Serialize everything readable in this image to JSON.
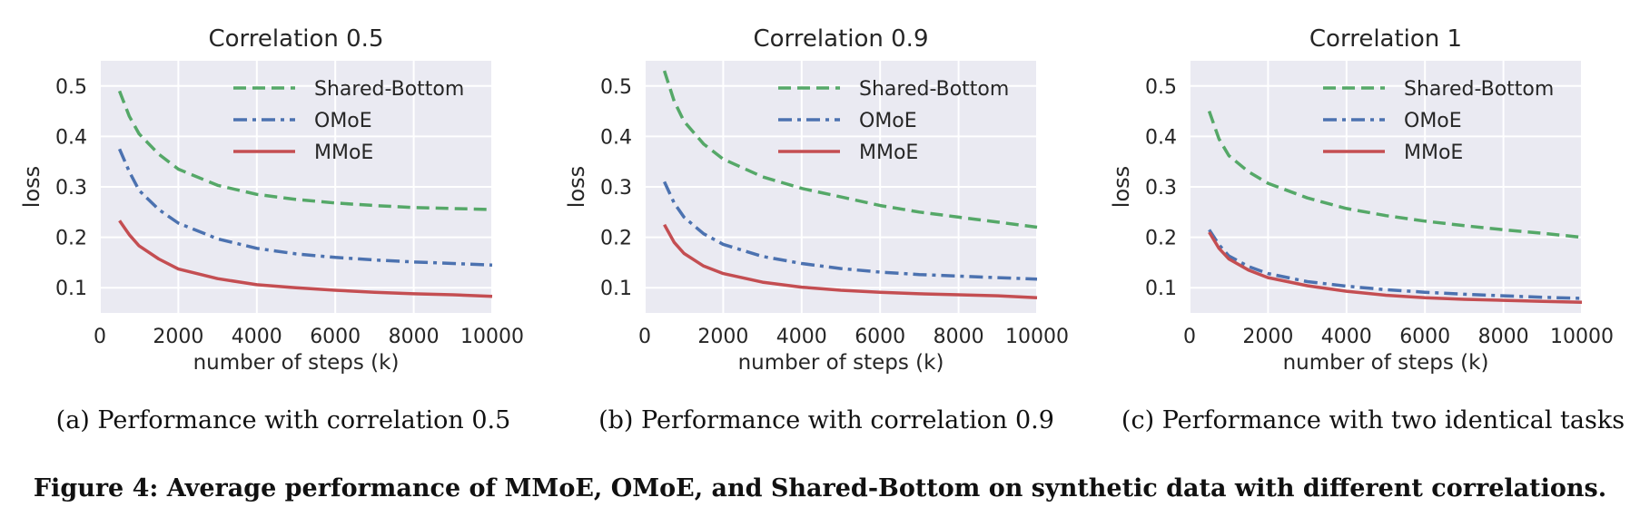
{
  "colors": {
    "plot_bg": "#eaeaf2",
    "grid": "#ffffff",
    "shared_bottom": "#55a868",
    "omoe": "#4c72b0",
    "mmoe": "#c44e52"
  },
  "captions": [
    "(a) Performance with correlation 0.5",
    "(b) Performance with correlation 0.9",
    "(c) Performance with two identical tasks"
  ],
  "figure_caption": "Figure 4: Average performance of MMoE, OMoE, and Shared-Bottom on synthetic data with different correlations.",
  "chart_data": [
    {
      "type": "line",
      "title": "Correlation 0.5",
      "xlabel": "number of steps (k)",
      "ylabel": "loss",
      "xlim": [
        0,
        10000
      ],
      "ylim": [
        0.05,
        0.55
      ],
      "xticks": [
        "0",
        "2000",
        "4000",
        "6000",
        "8000",
        "10000"
      ],
      "yticks": [
        "0.1",
        "0.2",
        "0.3",
        "0.4",
        "0.5"
      ],
      "grid": true,
      "legend": "top-right",
      "x": [
        500,
        750,
        1000,
        1500,
        2000,
        3000,
        4000,
        5000,
        6000,
        7000,
        8000,
        9000,
        10000
      ],
      "series": [
        {
          "name": "Shared-Bottom",
          "style": "dashed",
          "values": [
            0.49,
            0.44,
            0.405,
            0.365,
            0.335,
            0.303,
            0.285,
            0.275,
            0.268,
            0.263,
            0.259,
            0.257,
            0.255
          ]
        },
        {
          "name": "OMoE",
          "style": "dashdot",
          "values": [
            0.375,
            0.33,
            0.293,
            0.255,
            0.228,
            0.197,
            0.178,
            0.167,
            0.16,
            0.155,
            0.151,
            0.148,
            0.145
          ]
        },
        {
          "name": "MMoE",
          "style": "solid",
          "values": [
            0.233,
            0.205,
            0.183,
            0.157,
            0.137,
            0.118,
            0.106,
            0.1,
            0.095,
            0.091,
            0.088,
            0.086,
            0.083
          ]
        }
      ]
    },
    {
      "type": "line",
      "title": "Correlation 0.9",
      "xlabel": "number of steps (k)",
      "ylabel": "loss",
      "xlim": [
        0,
        10000
      ],
      "ylim": [
        0.05,
        0.55
      ],
      "xticks": [
        "0",
        "2000",
        "4000",
        "6000",
        "8000",
        "10000"
      ],
      "yticks": [
        "0.1",
        "0.2",
        "0.3",
        "0.4",
        "0.5"
      ],
      "grid": true,
      "legend": "top-right",
      "x": [
        500,
        750,
        1000,
        1500,
        2000,
        3000,
        4000,
        5000,
        6000,
        7000,
        8000,
        9000,
        10000
      ],
      "series": [
        {
          "name": "Shared-Bottom",
          "style": "dashed",
          "values": [
            0.53,
            0.47,
            0.43,
            0.385,
            0.355,
            0.32,
            0.297,
            0.28,
            0.263,
            0.25,
            0.24,
            0.23,
            0.22
          ]
        },
        {
          "name": "OMoE",
          "style": "dashdot",
          "values": [
            0.31,
            0.268,
            0.24,
            0.207,
            0.186,
            0.162,
            0.148,
            0.138,
            0.131,
            0.126,
            0.123,
            0.12,
            0.117
          ]
        },
        {
          "name": "MMoE",
          "style": "solid",
          "values": [
            0.225,
            0.19,
            0.168,
            0.143,
            0.128,
            0.111,
            0.101,
            0.095,
            0.091,
            0.088,
            0.086,
            0.084,
            0.08
          ]
        }
      ]
    },
    {
      "type": "line",
      "title": "Correlation 1",
      "xlabel": "number of steps (k)",
      "ylabel": "loss",
      "xlim": [
        0,
        10000
      ],
      "ylim": [
        0.05,
        0.55
      ],
      "xticks": [
        "0",
        "2000",
        "4000",
        "6000",
        "8000",
        "10000"
      ],
      "yticks": [
        "0.1",
        "0.2",
        "0.3",
        "0.4",
        "0.5"
      ],
      "grid": true,
      "legend": "top-right",
      "x": [
        500,
        750,
        1000,
        1500,
        2000,
        3000,
        4000,
        5000,
        6000,
        7000,
        8000,
        9000,
        10000
      ],
      "series": [
        {
          "name": "Shared-Bottom",
          "style": "dashed",
          "values": [
            0.45,
            0.395,
            0.362,
            0.33,
            0.307,
            0.278,
            0.257,
            0.243,
            0.232,
            0.223,
            0.215,
            0.208,
            0.2
          ]
        },
        {
          "name": "OMoE",
          "style": "dashdot",
          "values": [
            0.215,
            0.185,
            0.163,
            0.142,
            0.128,
            0.112,
            0.103,
            0.096,
            0.091,
            0.087,
            0.084,
            0.081,
            0.079
          ]
        },
        {
          "name": "MMoE",
          "style": "solid",
          "values": [
            0.21,
            0.178,
            0.157,
            0.135,
            0.12,
            0.104,
            0.093,
            0.085,
            0.08,
            0.077,
            0.075,
            0.073,
            0.071
          ]
        }
      ]
    }
  ]
}
